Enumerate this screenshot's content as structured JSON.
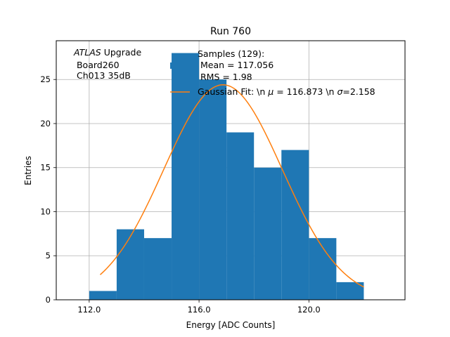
{
  "chart_data": {
    "type": "bar",
    "title": "Run 760",
    "xlabel": "Energy [ADC Counts]",
    "ylabel": "Entries",
    "xlim": [
      110.8,
      123.5
    ],
    "ylim": [
      0,
      29.4
    ],
    "grid": true,
    "x_ticks": [
      112.0,
      116.0,
      120.0
    ],
    "x_tick_labels": [
      "112.0",
      "116.0",
      "120.0"
    ],
    "y_ticks": [
      0,
      5,
      10,
      15,
      20,
      25
    ],
    "y_tick_labels": [
      "0",
      "5",
      "10",
      "15",
      "20",
      "25"
    ],
    "histogram": {
      "name": "Samples (129):",
      "color": "#1f77b4",
      "bin_edges": [
        112,
        113,
        114,
        115,
        116,
        117,
        118,
        119,
        120,
        121,
        122
      ],
      "counts": [
        1,
        8,
        7,
        28,
        25,
        19,
        15,
        17,
        7,
        2
      ]
    },
    "gaussian_fit": {
      "name": "Gaussian Fit: \\n $\\mu$ = 116.873 \\n $\\sigma$=2.158",
      "color": "#ff7f0e",
      "mu": 116.873,
      "sigma": 2.158,
      "amplitude": 24.4,
      "x_range": [
        112.4,
        122.0
      ]
    },
    "legend": {
      "placement": "top-right",
      "hist_line1": "Samples (129):",
      "hist_line2": " Mean = 117.056",
      "hist_line3": " RMS = 1.98",
      "fit_prefix": "Gaussian Fit: \\n ",
      "fit_mu_symbol": "μ",
      "fit_mid": " = 116.873 \\n ",
      "fit_sigma_symbol": "σ",
      "fit_suffix": "=2.158"
    },
    "annotation": {
      "atlas": "ATLAS",
      "upgrade": " Upgrade",
      "board": " Board260",
      "channel": " Ch013 35dB"
    }
  }
}
